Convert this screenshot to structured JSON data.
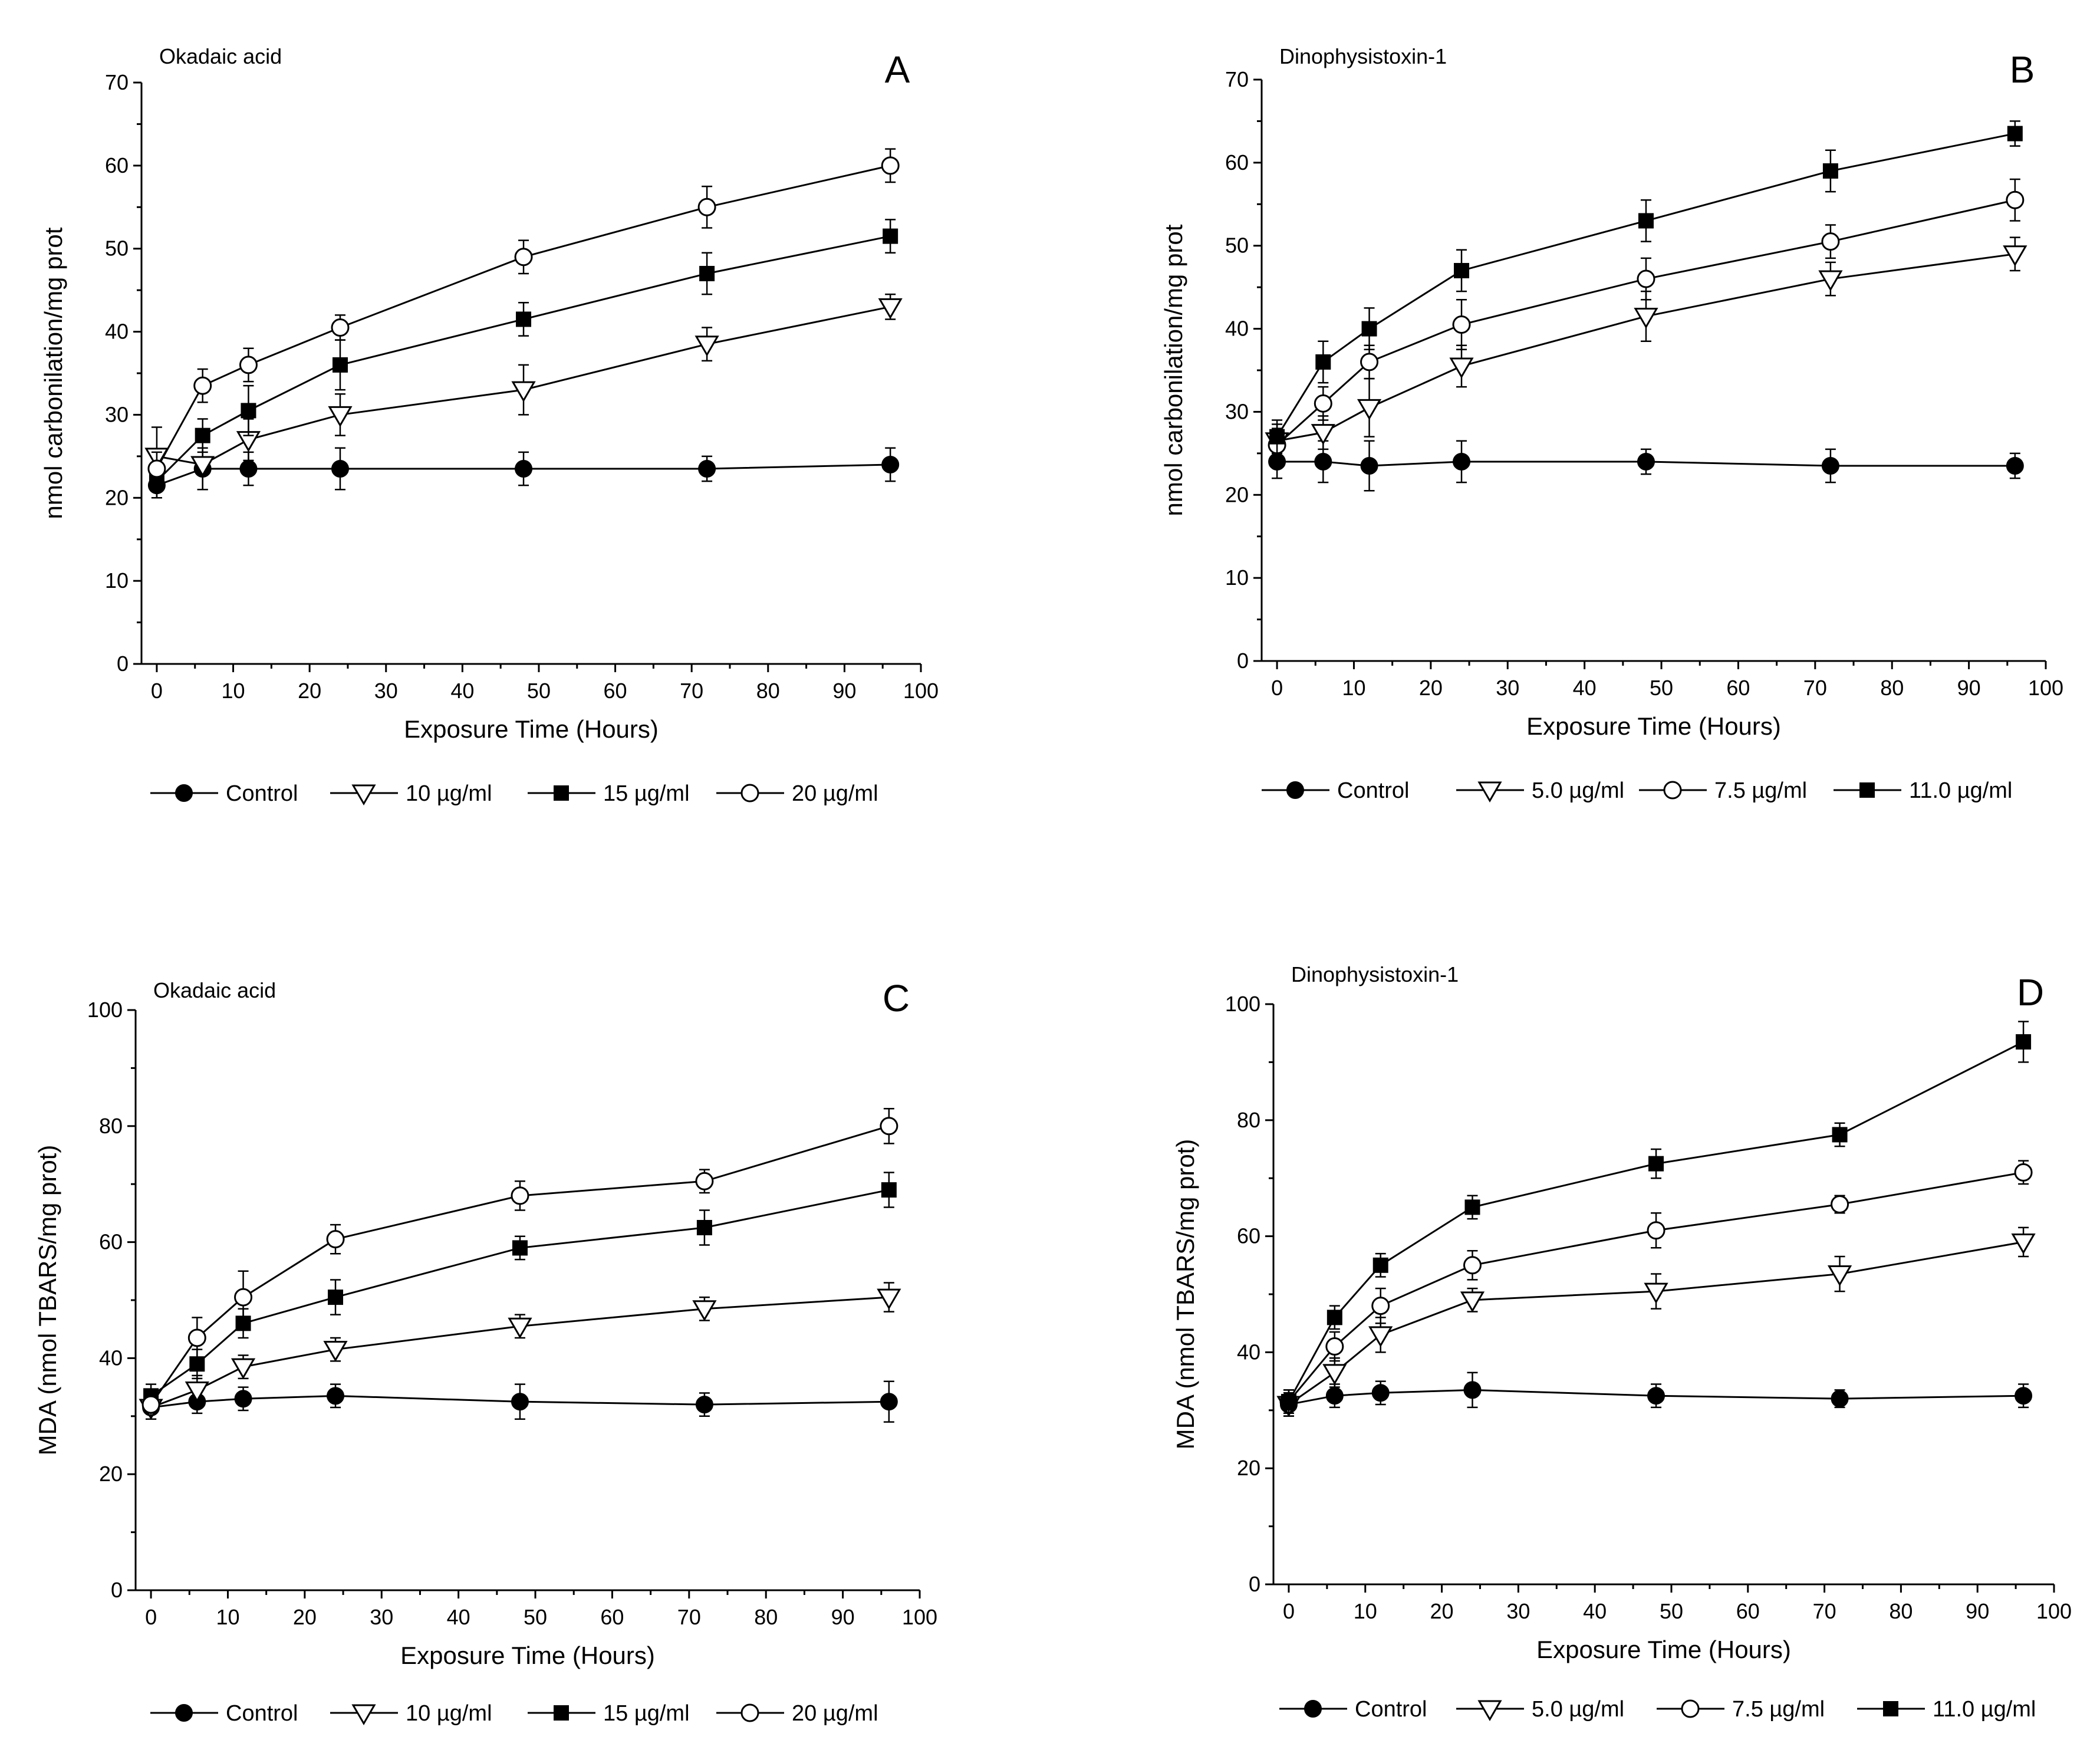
{
  "chart_data": [
    {
      "panel": "A",
      "type": "line",
      "title": "Okadaic acid",
      "xlabel": "Exposure Time (Hours)",
      "ylabel": "nmol carbonilation/mg prot",
      "xlim": [
        -2,
        100
      ],
      "ylim": [
        0,
        70
      ],
      "xticks": [
        0,
        10,
        20,
        30,
        40,
        50,
        60,
        70,
        80,
        90,
        100
      ],
      "yticks": [
        0,
        10,
        20,
        30,
        40,
        50,
        60,
        70
      ],
      "x": [
        0,
        6,
        12,
        24,
        48,
        72,
        96
      ],
      "legend_placement": "bottom",
      "series": [
        {
          "name": "Control",
          "marker": "filled-circle",
          "values": [
            21.5,
            23.5,
            23.5,
            23.5,
            23.5,
            23.5,
            24.0
          ],
          "errors": [
            1.5,
            2.5,
            2.0,
            2.5,
            2.0,
            1.5,
            2.0
          ]
        },
        {
          "name": "10 µg/ml",
          "marker": "open-triangle",
          "values": [
            25.0,
            24.0,
            27.0,
            30.0,
            33.0,
            38.5,
            43.0
          ],
          "errors": [
            3.5,
            3.0,
            2.5,
            2.5,
            3.0,
            2.0,
            1.5
          ]
        },
        {
          "name": "15 µg/ml",
          "marker": "filled-square",
          "values": [
            22.0,
            27.5,
            30.5,
            36.0,
            41.5,
            47.0,
            51.5
          ],
          "errors": [
            2.0,
            2.0,
            3.0,
            3.0,
            2.0,
            2.5,
            2.0
          ]
        },
        {
          "name": "20 µg/ml",
          "marker": "open-circle",
          "values": [
            23.5,
            33.5,
            36.0,
            40.5,
            49.0,
            55.0,
            60.0
          ],
          "errors": [
            2.0,
            2.0,
            2.0,
            1.5,
            2.0,
            2.5,
            2.0
          ]
        }
      ]
    },
    {
      "panel": "B",
      "type": "line",
      "title": "Dinophysistoxin-1",
      "xlabel": "Exposure Time (Hours)",
      "ylabel": "nmol carbonilation/mg prot",
      "xlim": [
        -2,
        100
      ],
      "ylim": [
        0,
        70
      ],
      "xticks": [
        0,
        10,
        20,
        30,
        40,
        50,
        60,
        70,
        80,
        90,
        100
      ],
      "yticks": [
        0,
        10,
        20,
        30,
        40,
        50,
        60,
        70
      ],
      "x": [
        0,
        6,
        12,
        24,
        48,
        72,
        96
      ],
      "legend_placement": "bottom",
      "series": [
        {
          "name": "Control",
          "marker": "filled-circle",
          "values": [
            24.0,
            24.0,
            23.5,
            24.0,
            24.0,
            23.5,
            23.5
          ],
          "errors": [
            2.0,
            2.5,
            3.0,
            2.5,
            1.5,
            2.0,
            1.5
          ]
        },
        {
          "name": "5.0 µg/ml",
          "marker": "open-triangle",
          "values": [
            26.5,
            27.5,
            30.5,
            35.5,
            41.5,
            46.0,
            49.0
          ],
          "errors": [
            2.0,
            2.0,
            3.5,
            2.5,
            3.0,
            2.0,
            2.0
          ]
        },
        {
          "name": "7.5 µg/ml",
          "marker": "open-circle",
          "values": [
            26.0,
            31.0,
            36.0,
            40.5,
            46.0,
            50.5,
            55.5
          ],
          "errors": [
            2.0,
            2.0,
            2.0,
            3.0,
            2.5,
            2.0,
            2.5
          ]
        },
        {
          "name": "11.0 µg/ml",
          "marker": "filled-square",
          "values": [
            27.0,
            36.0,
            40.0,
            47.0,
            53.0,
            59.0,
            63.5
          ],
          "errors": [
            2.0,
            2.5,
            2.5,
            2.5,
            2.5,
            2.5,
            1.5
          ]
        }
      ]
    },
    {
      "panel": "C",
      "type": "line",
      "title": "Okadaic acid",
      "xlabel": "Exposure Time (Hours)",
      "ylabel": "MDA (nmol TBARS/mg prot)",
      "xlim": [
        -2,
        100
      ],
      "ylim": [
        0,
        100
      ],
      "xticks": [
        0,
        10,
        20,
        30,
        40,
        50,
        60,
        70,
        80,
        90,
        100
      ],
      "yticks": [
        0,
        20,
        40,
        60,
        80,
        100
      ],
      "x": [
        0,
        6,
        12,
        24,
        48,
        72,
        96
      ],
      "legend_placement": "bottom",
      "series": [
        {
          "name": "Control",
          "marker": "filled-circle",
          "values": [
            31.5,
            32.5,
            33.0,
            33.5,
            32.5,
            32.0,
            32.5
          ],
          "errors": [
            2.0,
            2.0,
            2.0,
            2.0,
            3.0,
            2.0,
            3.5
          ]
        },
        {
          "name": "10 µg/ml",
          "marker": "open-triangle",
          "values": [
            31.5,
            34.5,
            38.5,
            41.5,
            45.5,
            48.5,
            50.5
          ],
          "errors": [
            2.0,
            2.5,
            2.0,
            2.0,
            2.0,
            2.0,
            2.5
          ]
        },
        {
          "name": "15 µg/ml",
          "marker": "filled-square",
          "values": [
            33.5,
            39.0,
            46.0,
            50.5,
            59.0,
            62.5,
            69.0
          ],
          "errors": [
            2.0,
            2.5,
            2.5,
            3.0,
            2.0,
            3.0,
            3.0
          ]
        },
        {
          "name": "20 µg/ml",
          "marker": "open-circle",
          "values": [
            32.0,
            43.5,
            50.5,
            60.5,
            68.0,
            70.5,
            80.0
          ],
          "errors": [
            2.5,
            3.5,
            4.5,
            2.5,
            2.5,
            2.0,
            3.0
          ]
        }
      ]
    },
    {
      "panel": "D",
      "type": "line",
      "title": "Dinophysistoxin-1",
      "xlabel": "Exposure Time (Hours)",
      "ylabel": "MDA (nmol TBARS/mg prot)",
      "xlim": [
        -2,
        100
      ],
      "ylim": [
        0,
        100
      ],
      "xticks": [
        0,
        10,
        20,
        30,
        40,
        50,
        60,
        70,
        80,
        90,
        100
      ],
      "yticks": [
        0,
        20,
        40,
        60,
        80,
        100
      ],
      "x": [
        0,
        6,
        12,
        24,
        48,
        72,
        96
      ],
      "legend_placement": "bottom",
      "series": [
        {
          "name": "Control",
          "marker": "filled-circle",
          "values": [
            31.0,
            32.5,
            33.0,
            33.5,
            32.5,
            32.0,
            32.5
          ],
          "errors": [
            2.0,
            2.0,
            2.0,
            3.0,
            2.0,
            1.5,
            2.0
          ]
        },
        {
          "name": "5.0 µg/ml",
          "marker": "open-triangle",
          "values": [
            31.0,
            36.5,
            43.0,
            49.0,
            50.5,
            53.5,
            59.0
          ],
          "errors": [
            2.0,
            2.5,
            3.0,
            2.0,
            3.0,
            3.0,
            2.5
          ]
        },
        {
          "name": "7.5 µg/ml",
          "marker": "open-circle",
          "values": [
            31.5,
            41.0,
            48.0,
            55.0,
            61.0,
            65.5,
            71.0
          ],
          "errors": [
            2.0,
            2.5,
            3.0,
            2.5,
            3.0,
            1.5,
            2.0
          ]
        },
        {
          "name": "11.0 µg/ml",
          "marker": "filled-square",
          "values": [
            31.5,
            46.0,
            55.0,
            65.0,
            72.5,
            77.5,
            93.5
          ],
          "errors": [
            2.0,
            2.0,
            2.0,
            2.0,
            2.5,
            2.0,
            3.5
          ]
        }
      ]
    }
  ]
}
